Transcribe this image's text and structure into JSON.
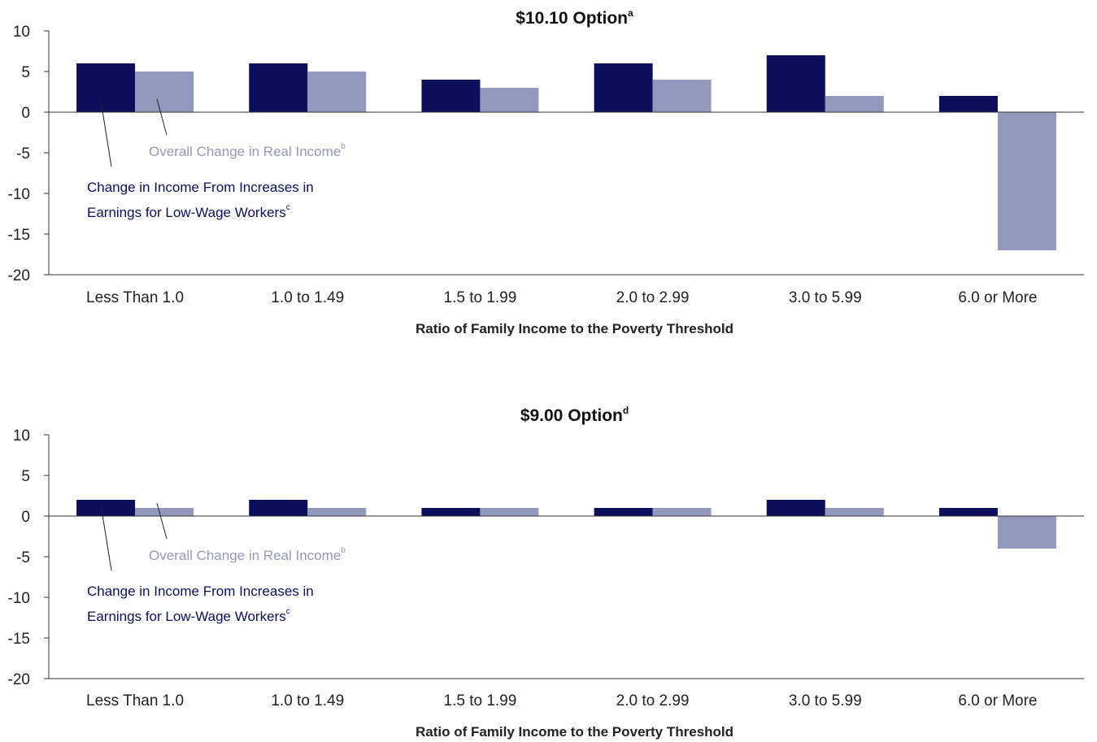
{
  "colors": {
    "earnings": "#0b0f5c",
    "overall": "#9398bd",
    "axis": "#333333"
  },
  "chart_data": [
    {
      "type": "bar",
      "title": "$10.10 Option",
      "title_note": "a",
      "xlabel": "Ratio of Family Income to the Poverty Threshold",
      "ylabel": "",
      "ylim": [
        -20,
        10
      ],
      "yticks": [
        10,
        5,
        0,
        -5,
        -10,
        -15,
        -20
      ],
      "categories": [
        "Less Than 1.0",
        "1.0 to 1.49",
        "1.5 to 1.99",
        "2.0 to 2.99",
        "3.0 to 5.99",
        "6.0 or More"
      ],
      "series": [
        {
          "name": "Change in Income From Increases in Earnings for Low-Wage Workers",
          "values": [
            6,
            6,
            4,
            6,
            7,
            2
          ]
        },
        {
          "name": "Overall Change in Real Income",
          "values": [
            5,
            5,
            3,
            4,
            2,
            -17
          ]
        }
      ],
      "annotations": {
        "overall": {
          "text": "Overall Change in Real Income",
          "note": "b"
        },
        "earnings": {
          "line1": "Change in Income From Increases in",
          "line2": "Earnings for Low-Wage Workers",
          "note": "c"
        }
      }
    },
    {
      "type": "bar",
      "title": "$9.00 Option",
      "title_note": "d",
      "xlabel": "Ratio of Family Income to the Poverty Threshold",
      "ylabel": "",
      "ylim": [
        -20,
        10
      ],
      "yticks": [
        10,
        5,
        0,
        -5,
        -10,
        -15,
        -20
      ],
      "categories": [
        "Less Than 1.0",
        "1.0 to 1.49",
        "1.5 to 1.99",
        "2.0 to 2.99",
        "3.0 to 5.99",
        "6.0 or More"
      ],
      "series": [
        {
          "name": "Change in Income From Increases in Earnings for Low-Wage Workers",
          "values": [
            2,
            2,
            1,
            1,
            2,
            1
          ]
        },
        {
          "name": "Overall Change in Real Income",
          "values": [
            1,
            1,
            1,
            1,
            1,
            -4
          ]
        }
      ],
      "annotations": {
        "overall": {
          "text": "Overall Change in Real Income",
          "note": "b"
        },
        "earnings": {
          "line1": "Change in Income From Increases in",
          "line2": "Earnings for Low-Wage Workers",
          "note": "c"
        }
      }
    }
  ]
}
